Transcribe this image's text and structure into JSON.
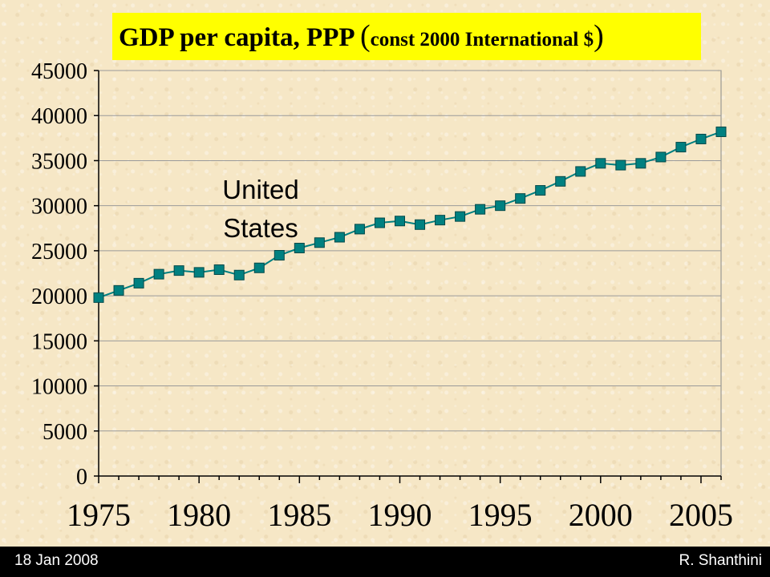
{
  "slide": {
    "footer_date": "18 Jan 2008",
    "footer_author": "R. Shanthini",
    "title_bar_color": "#ffff00",
    "footer_bar_color": "#000000"
  },
  "chart_data": {
    "type": "line",
    "title_main": "GDP per capita, PPP ",
    "title_open_paren": "(",
    "title_sub": "const 2000 International $",
    "title_close_paren": ")",
    "xlabel": "",
    "ylabel": "",
    "xlim": [
      1975,
      2006
    ],
    "ylim": [
      0,
      45000
    ],
    "y_ticks": [
      0,
      5000,
      10000,
      15000,
      20000,
      25000,
      30000,
      35000,
      40000,
      45000
    ],
    "x_ticks": [
      1975,
      1980,
      1985,
      1990,
      1995,
      2000,
      2005
    ],
    "grid": true,
    "legend": "none",
    "annotation": [
      "United",
      "States"
    ],
    "series": [
      {
        "name": "United States",
        "color": "#008080",
        "marker": "square",
        "x": [
          1975,
          1976,
          1977,
          1978,
          1979,
          1980,
          1981,
          1982,
          1983,
          1984,
          1985,
          1986,
          1987,
          1988,
          1989,
          1990,
          1991,
          1992,
          1993,
          1994,
          1995,
          1996,
          1997,
          1998,
          1999,
          2000,
          2001,
          2002,
          2003,
          2004,
          2005,
          2006
        ],
        "values": [
          19800,
          20600,
          21400,
          22400,
          22800,
          22600,
          22900,
          22300,
          23100,
          24500,
          25300,
          25900,
          26500,
          27400,
          28100,
          28300,
          27900,
          28400,
          28800,
          29600,
          30000,
          30800,
          31700,
          32700,
          33800,
          34700,
          34500,
          34700,
          35400,
          36500,
          37400,
          38200
        ]
      }
    ]
  }
}
